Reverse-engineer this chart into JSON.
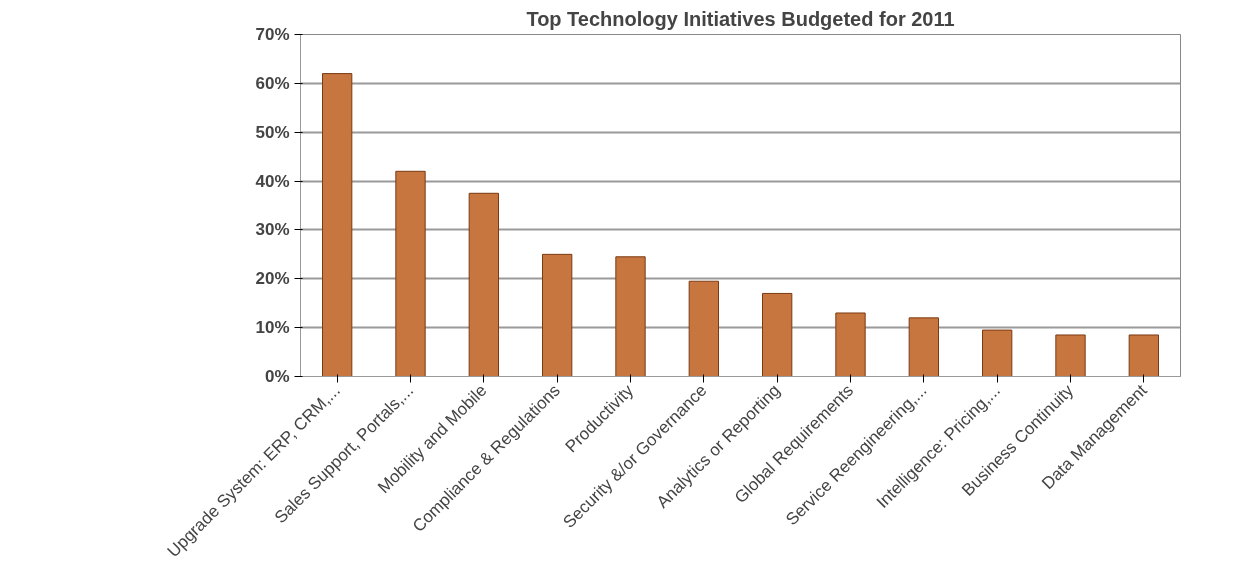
{
  "chart_data": {
    "type": "bar",
    "title": "Top Technology Initiatives Budgeted for 2011",
    "categories": [
      "Upgrade System: ERP, CRM,...",
      "Sales Support, Portals,...",
      "Mobility and Mobile",
      "Compliance & Regulations",
      "Productivity",
      "Security &/or Governance",
      "Analytics or Reporting",
      "Global Requirements",
      "Service Reengineering,...",
      "Intelligence: Pricing,...",
      "Business Continuity",
      "Data Management"
    ],
    "values": [
      62,
      42,
      37.5,
      25,
      24.5,
      19.5,
      17,
      13,
      12,
      9.5,
      8.5,
      8.5
    ],
    "color": "#c8763f",
    "ylim": [
      0,
      70
    ],
    "yticks": [
      {
        "value": 0,
        "label": "0%"
      },
      {
        "value": 10,
        "label": "10%"
      },
      {
        "value": 20,
        "label": "20%"
      },
      {
        "value": 30,
        "label": "30%"
      },
      {
        "value": 40,
        "label": "40%"
      },
      {
        "value": 50,
        "label": "50%"
      },
      {
        "value": 60,
        "label": "60%"
      },
      {
        "value": 70,
        "label": "70%"
      }
    ],
    "grid": "y"
  }
}
